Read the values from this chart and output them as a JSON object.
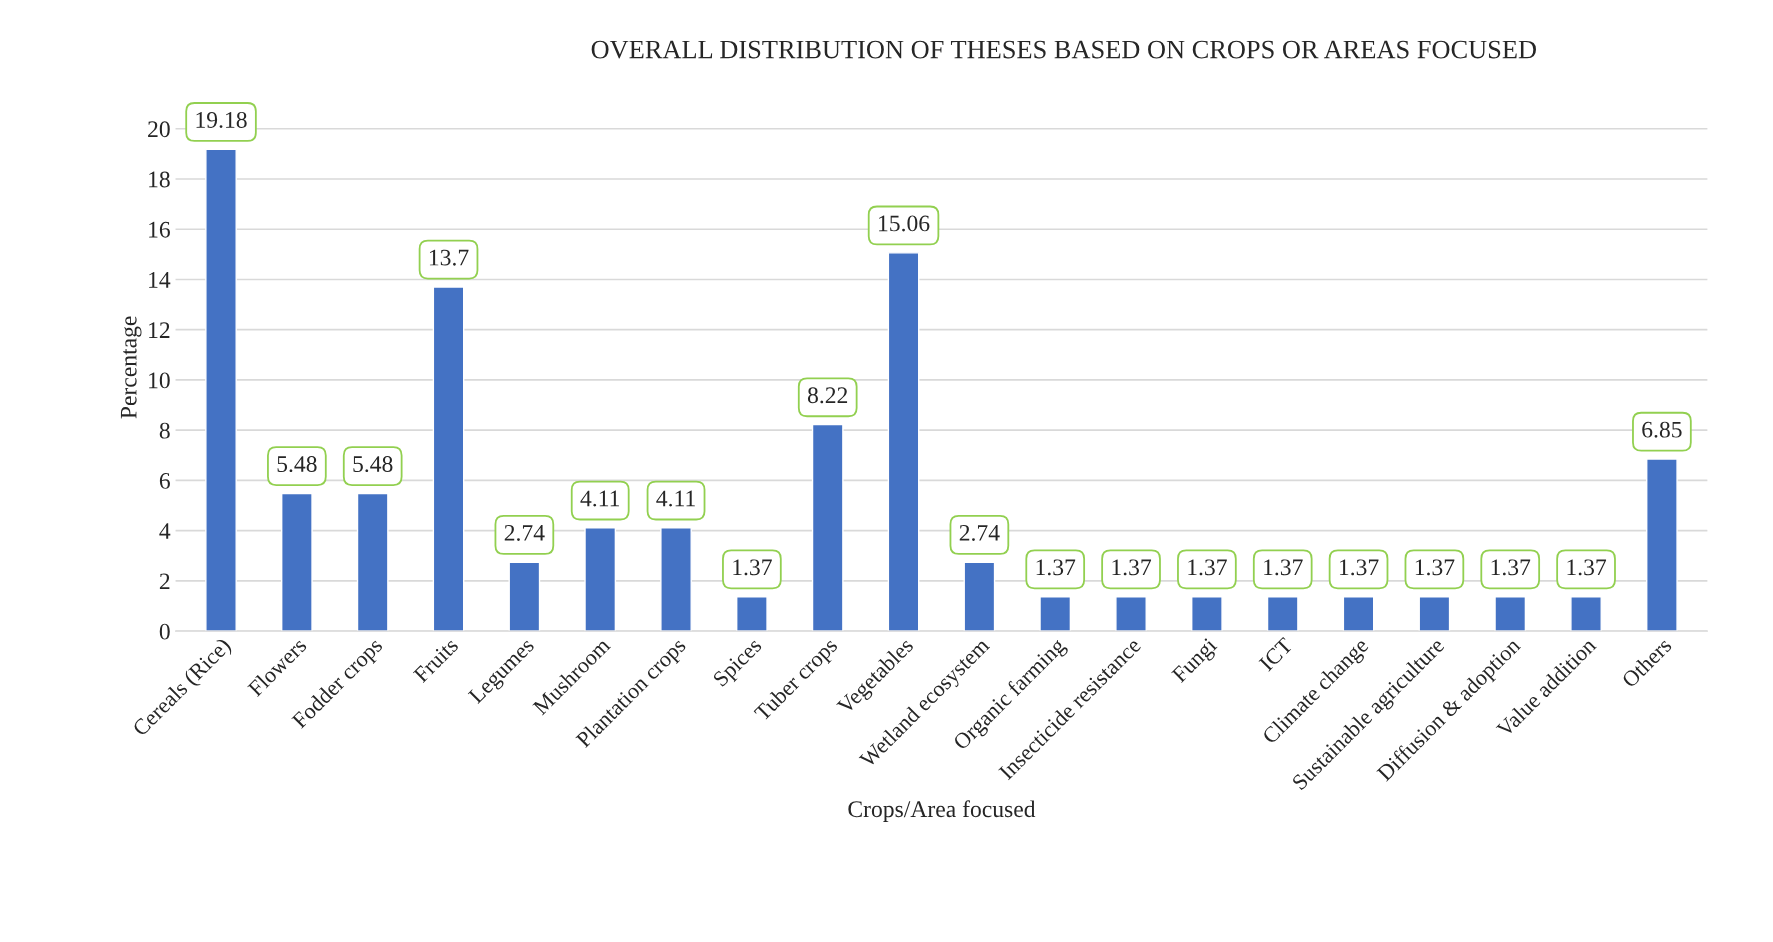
{
  "chart_data": {
    "type": "bar",
    "title": "OVERALL DISTRIBUTION OF THESES BASED ON CROPS OR AREAS FOCUSED",
    "xlabel": "Crops/Area focused",
    "ylabel": "Percentage",
    "categories": [
      "Cereals (Rice)",
      "Flowers",
      "Fodder crops",
      "Fruits",
      "Legumes",
      "Mushroom",
      "Plantation crops",
      "Spices",
      "Tuber crops",
      "Vegetables",
      "Wetland ecosystem",
      "Organic farming",
      "Insecticide resistance",
      "Fungi",
      "ICT",
      "Climate change",
      "Sustainable agriculture",
      "Diffusion & adoption",
      "Value addition",
      "Others"
    ],
    "values": [
      19.18,
      5.48,
      5.48,
      13.7,
      2.74,
      4.11,
      4.11,
      1.37,
      8.22,
      15.06,
      2.74,
      1.37,
      1.37,
      1.37,
      1.37,
      1.37,
      1.37,
      1.37,
      1.37,
      6.85
    ],
    "color": "#4472c4",
    "ylim": [
      0,
      21
    ],
    "yticks": [
      0,
      2,
      4,
      6,
      8,
      10,
      12,
      14,
      16,
      18,
      20
    ],
    "grid": "y",
    "data_labels": true,
    "legend": false
  }
}
